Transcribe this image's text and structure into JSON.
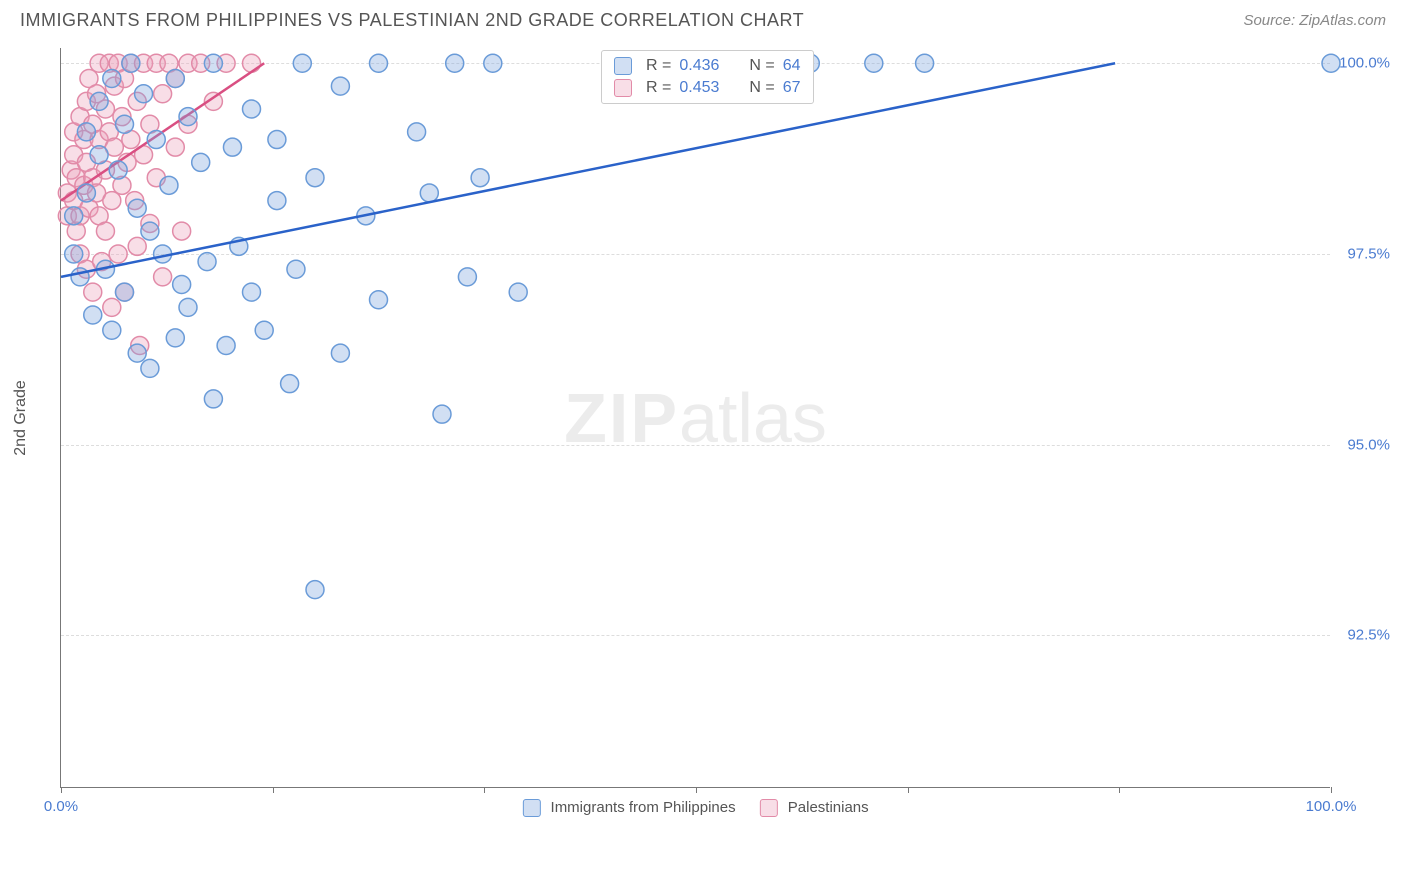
{
  "title": "IMMIGRANTS FROM PHILIPPINES VS PALESTINIAN 2ND GRADE CORRELATION CHART",
  "source": "Source: ZipAtlas.com",
  "ylabel": "2nd Grade",
  "watermark_bold": "ZIP",
  "watermark_light": "atlas",
  "chart": {
    "type": "scatter",
    "background_color": "#ffffff",
    "grid_color": "#dddddd",
    "axis_color": "#777777",
    "tick_label_color": "#4a7bd0",
    "xlim": [
      0,
      100
    ],
    "ylim": [
      90.5,
      100.2
    ],
    "yticks": [
      92.5,
      95.0,
      97.5,
      100.0
    ],
    "ytick_labels": [
      "92.5%",
      "95.0%",
      "97.5%",
      "100.0%"
    ],
    "xtick_marks": [
      0,
      16.67,
      33.33,
      50,
      66.67,
      83.33,
      100
    ],
    "xtick_labels": {
      "0": "0.0%",
      "100": "100.0%"
    },
    "marker_radius": 9,
    "marker_stroke_width": 1.5,
    "line_width": 2.5,
    "series": {
      "philippines": {
        "label": "Immigrants from Philippines",
        "fill": "rgba(122,162,220,0.35)",
        "stroke": "#6a9bd8",
        "line_color": "#2a62c9",
        "R": "0.436",
        "N": "64",
        "regression": {
          "x1": 0,
          "y1": 97.2,
          "x2": 83,
          "y2": 100.0
        },
        "points": [
          [
            1,
            97.5
          ],
          [
            1,
            98.0
          ],
          [
            1.5,
            97.2
          ],
          [
            2,
            98.3
          ],
          [
            2,
            99.1
          ],
          [
            2.5,
            96.7
          ],
          [
            3,
            98.8
          ],
          [
            3,
            99.5
          ],
          [
            3.5,
            97.3
          ],
          [
            4,
            99.8
          ],
          [
            4,
            96.5
          ],
          [
            4.5,
            98.6
          ],
          [
            5,
            99.2
          ],
          [
            5,
            97.0
          ],
          [
            5.5,
            100.0
          ],
          [
            6,
            98.1
          ],
          [
            6,
            96.2
          ],
          [
            6.5,
            99.6
          ],
          [
            7,
            97.8
          ],
          [
            7,
            96.0
          ],
          [
            7.5,
            99.0
          ],
          [
            8,
            97.5
          ],
          [
            8.5,
            98.4
          ],
          [
            9,
            96.4
          ],
          [
            9,
            99.8
          ],
          [
            9.5,
            97.1
          ],
          [
            10,
            99.3
          ],
          [
            10,
            96.8
          ],
          [
            11,
            98.7
          ],
          [
            11.5,
            97.4
          ],
          [
            12,
            95.6
          ],
          [
            12,
            100.0
          ],
          [
            13,
            96.3
          ],
          [
            13.5,
            98.9
          ],
          [
            14,
            97.6
          ],
          [
            15,
            99.4
          ],
          [
            15,
            97.0
          ],
          [
            16,
            96.5
          ],
          [
            17,
            99.0
          ],
          [
            17,
            98.2
          ],
          [
            18,
            95.8
          ],
          [
            18.5,
            97.3
          ],
          [
            19,
            100.0
          ],
          [
            20,
            98.5
          ],
          [
            20,
            93.1
          ],
          [
            22,
            99.7
          ],
          [
            22,
            96.2
          ],
          [
            24,
            98.0
          ],
          [
            25,
            100.0
          ],
          [
            25,
            96.9
          ],
          [
            28,
            99.1
          ],
          [
            29,
            98.3
          ],
          [
            30,
            95.4
          ],
          [
            31,
            100.0
          ],
          [
            32,
            97.2
          ],
          [
            33,
            98.5
          ],
          [
            34,
            100.0
          ],
          [
            36,
            97.0
          ],
          [
            46,
            100.0
          ],
          [
            49,
            100.0
          ],
          [
            59,
            100.0
          ],
          [
            64,
            100.0
          ],
          [
            68,
            100.0
          ],
          [
            100,
            100.0
          ]
        ]
      },
      "palestinians": {
        "label": "Palestinians",
        "fill": "rgba(234,160,185,0.35)",
        "stroke": "#e28ba8",
        "line_color": "#d94f82",
        "R": "0.453",
        "N": "67",
        "regression": {
          "x1": 0,
          "y1": 98.2,
          "x2": 16,
          "y2": 100.0
        },
        "points": [
          [
            0.5,
            98.3
          ],
          [
            0.5,
            98.0
          ],
          [
            0.8,
            98.6
          ],
          [
            1,
            98.8
          ],
          [
            1,
            98.2
          ],
          [
            1,
            99.1
          ],
          [
            1.2,
            97.8
          ],
          [
            1.2,
            98.5
          ],
          [
            1.5,
            99.3
          ],
          [
            1.5,
            98.0
          ],
          [
            1.5,
            97.5
          ],
          [
            1.8,
            99.0
          ],
          [
            1.8,
            98.4
          ],
          [
            2,
            99.5
          ],
          [
            2,
            98.7
          ],
          [
            2,
            97.3
          ],
          [
            2.2,
            98.1
          ],
          [
            2.2,
            99.8
          ],
          [
            2.5,
            99.2
          ],
          [
            2.5,
            98.5
          ],
          [
            2.5,
            97.0
          ],
          [
            2.8,
            99.6
          ],
          [
            2.8,
            98.3
          ],
          [
            3,
            100.0
          ],
          [
            3,
            99.0
          ],
          [
            3,
            98.0
          ],
          [
            3.2,
            97.4
          ],
          [
            3.5,
            99.4
          ],
          [
            3.5,
            98.6
          ],
          [
            3.5,
            97.8
          ],
          [
            3.8,
            100.0
          ],
          [
            3.8,
            99.1
          ],
          [
            4,
            98.2
          ],
          [
            4,
            96.8
          ],
          [
            4.2,
            99.7
          ],
          [
            4.2,
            98.9
          ],
          [
            4.5,
            97.5
          ],
          [
            4.5,
            100.0
          ],
          [
            4.8,
            99.3
          ],
          [
            4.8,
            98.4
          ],
          [
            5,
            97.0
          ],
          [
            5,
            99.8
          ],
          [
            5.2,
            98.7
          ],
          [
            5.5,
            100.0
          ],
          [
            5.5,
            99.0
          ],
          [
            5.8,
            98.2
          ],
          [
            6,
            99.5
          ],
          [
            6,
            97.6
          ],
          [
            6.2,
            96.3
          ],
          [
            6.5,
            100.0
          ],
          [
            6.5,
            98.8
          ],
          [
            7,
            99.2
          ],
          [
            7,
            97.9
          ],
          [
            7.5,
            100.0
          ],
          [
            7.5,
            98.5
          ],
          [
            8,
            99.6
          ],
          [
            8,
            97.2
          ],
          [
            8.5,
            100.0
          ],
          [
            9,
            98.9
          ],
          [
            9,
            99.8
          ],
          [
            9.5,
            97.8
          ],
          [
            10,
            100.0
          ],
          [
            10,
            99.2
          ],
          [
            11,
            100.0
          ],
          [
            12,
            99.5
          ],
          [
            13,
            100.0
          ],
          [
            15,
            100.0
          ]
        ]
      }
    }
  }
}
